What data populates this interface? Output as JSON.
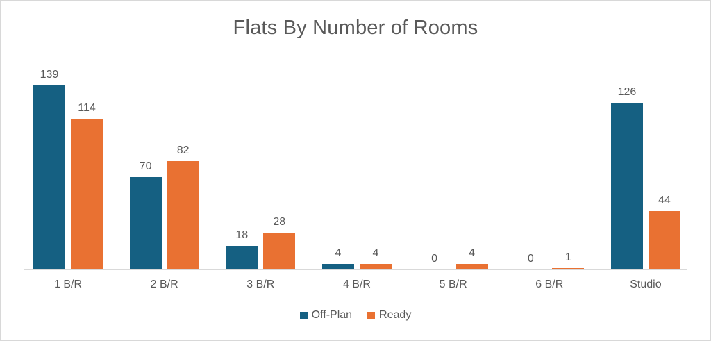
{
  "frame": {
    "background": "#ffffff",
    "border_color": "#d8d8d8"
  },
  "chart_data": {
    "type": "bar",
    "title": "Flats By Number of Rooms",
    "categories": [
      "1 B/R",
      "2 B/R",
      "3 B/R",
      "4 B/R",
      "5 B/R",
      "6 B/R",
      "Studio"
    ],
    "series": [
      {
        "name": "Off-Plan",
        "color": "#156082",
        "values": [
          139,
          70,
          18,
          4,
          0,
          0,
          126
        ]
      },
      {
        "name": "Ready",
        "color": "#e97132",
        "values": [
          114,
          82,
          28,
          4,
          4,
          1,
          44
        ]
      }
    ],
    "xlabel": "",
    "ylabel": "",
    "ylim": [
      0,
      150
    ],
    "grid": false,
    "data_labels": true,
    "legend_position": "bottom"
  },
  "colors": {
    "title_text": "#595959",
    "label_text": "#595959",
    "axis_line": "#d9d9d9"
  }
}
